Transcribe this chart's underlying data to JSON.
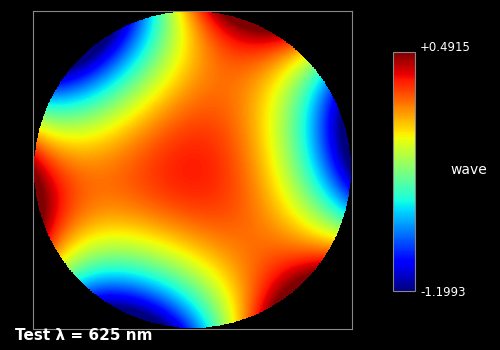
{
  "title": "",
  "vmin": -1.1993,
  "vmax": 0.4915,
  "colorbar_label": "wave",
  "colorbar_top_label": "+0.4915",
  "colorbar_bot_label": "-1.1993",
  "test_label": "Test λ = 625 nm",
  "background_color": "#000000",
  "border_color": "#888888",
  "text_color": "#ffffff",
  "colormap": "jet",
  "figsize": [
    5.0,
    3.5
  ],
  "dpi": 100,
  "grid_size": 500,
  "trefoil_amp": -1.65,
  "defocus_amp": 0.55,
  "trefoil_phase": 0.52
}
